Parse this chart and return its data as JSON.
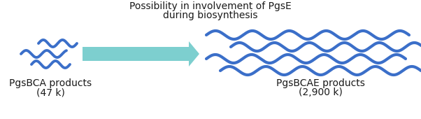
{
  "title_line1": "Possibility in involvement of PgsE",
  "title_line2": "during biosynthesis",
  "left_label_line1": "PgsBCA products",
  "left_label_line2": "(47 k)",
  "right_label_line1": "PgsBCAE products",
  "right_label_line2": "(2,900 k)",
  "wave_color": "#3B6FC9",
  "arrow_color_light": "#A8D8D8",
  "arrow_color_dark": "#6DBFBF",
  "bg_color": "#ffffff",
  "title_fontsize": 10,
  "label_fontsize": 10
}
